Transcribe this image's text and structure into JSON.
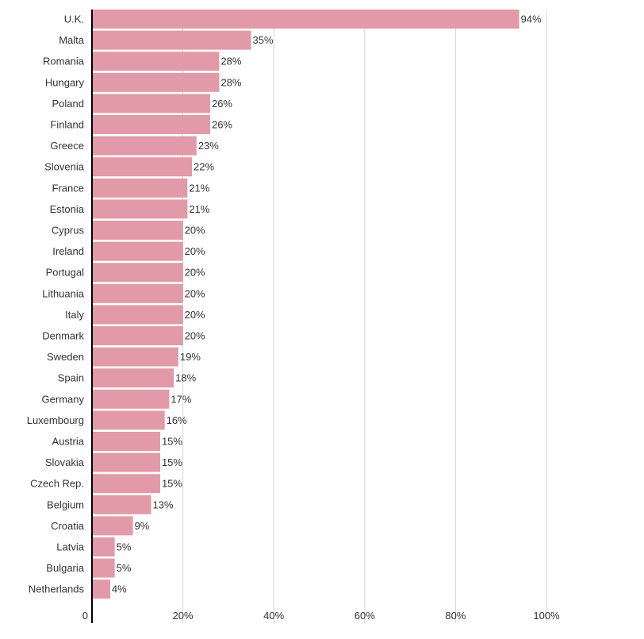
{
  "chart_data": {
    "type": "bar",
    "orientation": "horizontal",
    "categories": [
      "U.K.",
      "Malta",
      "Romania",
      "Hungary",
      "Poland",
      "Finland",
      "Greece",
      "Slovenia",
      "France",
      "Estonia",
      "Cyprus",
      "Ireland",
      "Portugal",
      "Lithuania",
      "Italy",
      "Denmark",
      "Sweden",
      "Spain",
      "Germany",
      "Luxembourg",
      "Austria",
      "Slovakia",
      "Czech Rep.",
      "Belgium",
      "Croatia",
      "Latvia",
      "Bulgaria",
      "Netherlands"
    ],
    "values": [
      94,
      35,
      28,
      28,
      26,
      26,
      23,
      22,
      21,
      21,
      20,
      20,
      20,
      20,
      20,
      20,
      19,
      18,
      17,
      16,
      15,
      15,
      15,
      13,
      9,
      5,
      5,
      4
    ],
    "value_labels": [
      "94%",
      "35%",
      "28%",
      "28%",
      "26%",
      "26%",
      "23%",
      "22%",
      "21%",
      "21%",
      "20%",
      "20%",
      "20%",
      "20%",
      "20%",
      "20%",
      "19%",
      "18%",
      "17%",
      "16%",
      "15%",
      "15%",
      "15%",
      "13%",
      "9%",
      "5%",
      "5%",
      "4%"
    ],
    "xlim": [
      0,
      100
    ],
    "x_ticks": [
      0,
      20,
      40,
      60,
      80,
      100
    ],
    "x_tick_labels": [
      "0",
      "20%",
      "40%",
      "60%",
      "80%",
      "100%"
    ],
    "title": "",
    "xlabel": "",
    "ylabel": "",
    "grid": "vertical",
    "legend": "none",
    "colors": {
      "bar": "#e29aa8",
      "axis": "#000000",
      "grid": "#d4d4d4",
      "text": "#333333"
    }
  }
}
